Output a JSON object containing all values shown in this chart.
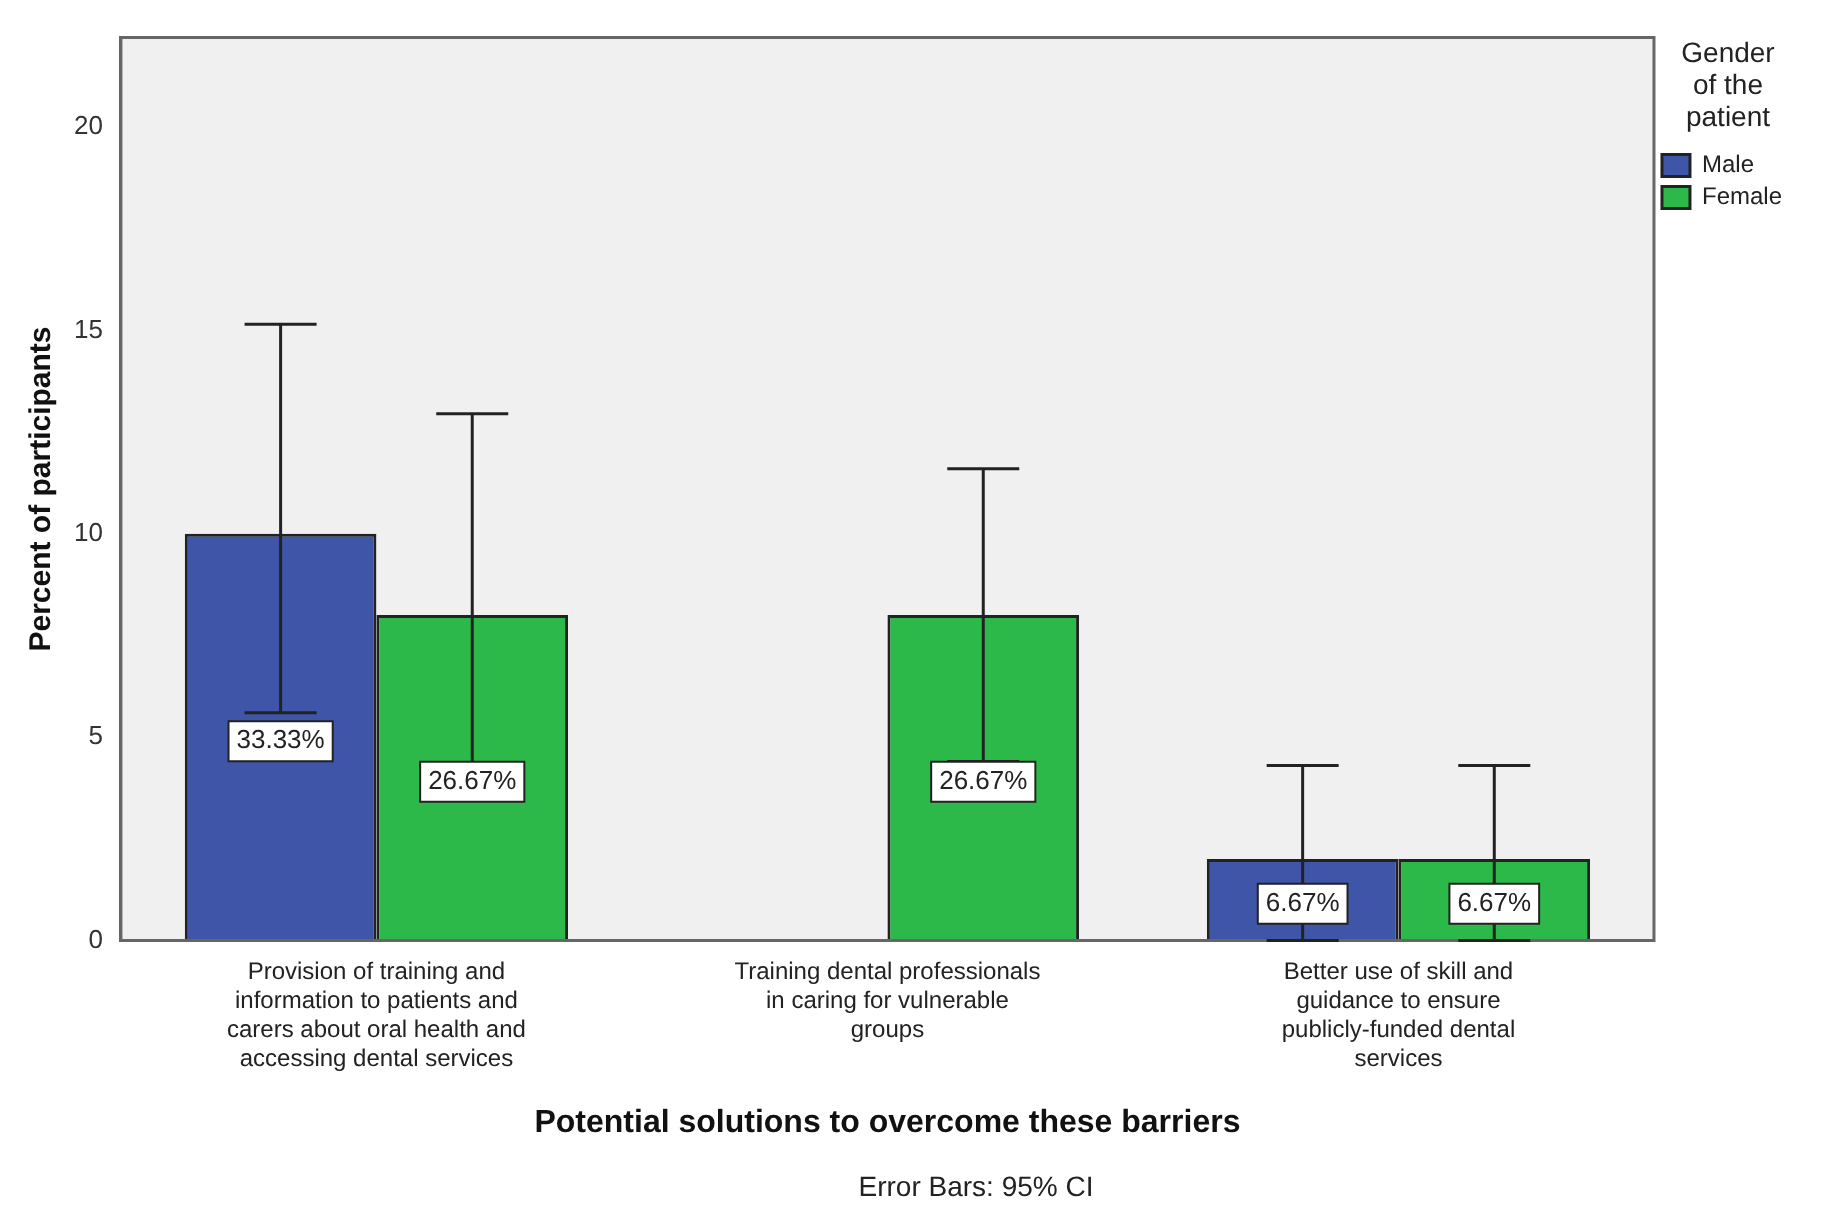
{
  "chart_data": {
    "type": "bar",
    "xlabel": "Potential solutions to overcome these barriers",
    "ylabel": "Percent of participants",
    "legend_title": "Gender of the patient",
    "legend": "top right",
    "grid": false,
    "categories": [
      "Provision of training and information to patients and carers about oral health and accessing dental services",
      "Training dental professionals in caring for vulnerable groups",
      "Better use of skill and guidance to ensure publicly-funded dental services"
    ],
    "series": [
      {
        "name": "Male",
        "color": "#3f55a8",
        "values": [
          10,
          null,
          2
        ],
        "errors": [
          [
            5.6,
            15.15
          ],
          null,
          [
            0,
            4.3
          ]
        ]
      },
      {
        "name": "Female",
        "color": "#2db84a",
        "values": [
          8,
          8,
          2
        ],
        "errors": [
          [
            4.1,
            12.95
          ],
          [
            4.4,
            11.6
          ],
          [
            0,
            4.3
          ]
        ]
      }
    ],
    "ylim": [
      0,
      22.2
    ],
    "yticks": [
      0,
      5,
      10,
      15,
      20
    ],
    "annotations": [
      {
        "text": "33.33%",
        "x": "Provision of training and information to patients and carers about oral health and accessing dental services",
        "y": 4.9
      },
      {
        "text": "26.67%",
        "x": "Provision of training and information to patients and carers about oral health and accessing dental services",
        "y": 3.9
      },
      {
        "text": "26.67%",
        "x": "Training dental professionals in caring for vulnerable groups",
        "y": 3.9
      },
      {
        "text": "6.67%",
        "x": "Better use of skill and guidance to ensure publicly-funded dental services",
        "y": 0.9
      },
      {
        "text": "6.67%",
        "x": "Better use of skill and guidance to ensure publicly-funded dental services",
        "y": 0.9
      },
      "Error Bars: 95% CI"
    ]
  }
}
